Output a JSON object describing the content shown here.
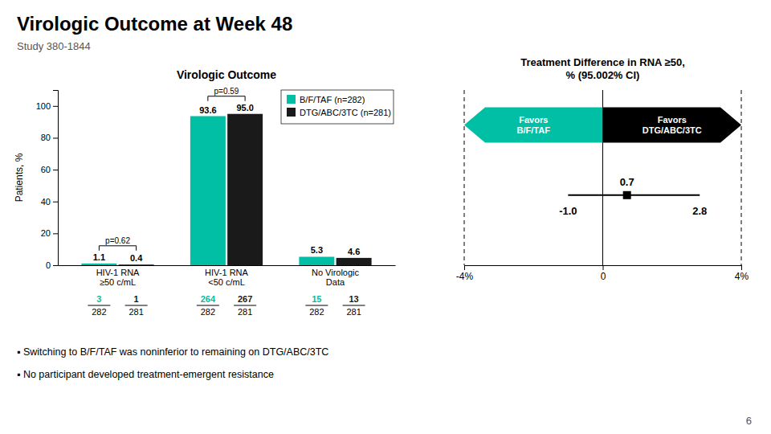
{
  "title": "Virologic Outcome at Week 48",
  "subtitle": "Study 380-1844",
  "annotations": [
    "▪  Switching to B/F/TAF was noninferior to remaining on DTG/ABC/3TC",
    "▪  No participant developed treatment-emergent resistance"
  ],
  "footnote": "6",
  "chart_data": [
    {
      "type": "bar",
      "title": "Virologic Outcome",
      "categories": [
        "HIV-1 RNA\n≥50 c/mL",
        "HIV-1 RNA\n<50 c/mL",
        "No Virologic\nData"
      ],
      "ylabel": "Patients, %",
      "ylim": [
        0,
        110
      ],
      "yticks": [
        0,
        20,
        40,
        60,
        80,
        100
      ],
      "series": [
        {
          "name": "B/F/TAF (n=282)",
          "color": "#00BFA5",
          "values": [
            1.1,
            93.6,
            5.3
          ],
          "value_labels": [
            "1.1",
            "93.6",
            "5.3"
          ],
          "counts": [
            3,
            264,
            15
          ],
          "totals": [
            282,
            282,
            282
          ]
        },
        {
          "name": "DTG/ABC/3TC (n=281)",
          "color": "#1a1a1a",
          "values": [
            0.4,
            95.0,
            4.6
          ],
          "value_labels": [
            "0.4",
            "95.0",
            "4.6"
          ],
          "counts": [
            1,
            267,
            13
          ],
          "totals": [
            281,
            281,
            281
          ]
        }
      ],
      "data_labels": true,
      "legend": "upper right",
      "annotations": [
        {
          "text": "p=0.62",
          "category": "HIV-1 RNA\n≥50 c/mL"
        },
        {
          "text": "p=0.59",
          "category": "HIV-1 RNA\n<50 c/mL"
        }
      ]
    },
    {
      "type": "forest",
      "title": "Treatment Difference in RNA ≥50,\n% (95.002% CI)",
      "xlim": [
        -4,
        4
      ],
      "xticks": [
        {
          "value": -4,
          "label": "-4%"
        },
        0,
        {
          "value": 4,
          "label": "4%"
        }
      ],
      "estimate": {
        "value": 0.7,
        "label": "0.7"
      },
      "ci": [
        {
          "value": -1.0,
          "label": "-1.0"
        },
        {
          "value": 2.8,
          "label": "2.8"
        }
      ],
      "regions": [
        {
          "name": "Favors\nB/F/TAF",
          "color": "#00BFA5"
        },
        {
          "name": "Favors\nDTG/ABC/3TC",
          "color": "#000000"
        }
      ],
      "data_labels": true
    }
  ]
}
